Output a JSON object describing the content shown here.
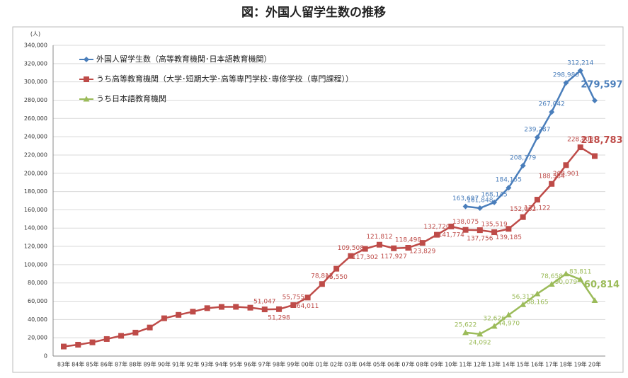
{
  "chart_data": {
    "type": "line",
    "title": "図：外国人留学生数の推移",
    "y_label": "(人)",
    "categories": [
      "83年",
      "84年",
      "85年",
      "86年",
      "87年",
      "88年",
      "89年",
      "90年",
      "91年",
      "92年",
      "93年",
      "94年",
      "95年",
      "96年",
      "97年",
      "98年",
      "99年",
      "00年",
      "01年",
      "02年",
      "03年",
      "04年",
      "05年",
      "06年",
      "07年",
      "08年",
      "09年",
      "10年",
      "11年",
      "12年",
      "13年",
      "14年",
      "15年",
      "16年",
      "17年",
      "18年",
      "19年",
      "20年"
    ],
    "series": [
      {
        "name": "外国人留学生数（高等教育機関･日本語教育機関）",
        "color": "#4a7ebb",
        "values": [
          null,
          null,
          null,
          null,
          null,
          null,
          null,
          null,
          null,
          null,
          null,
          null,
          null,
          null,
          null,
          null,
          null,
          null,
          null,
          null,
          null,
          null,
          null,
          null,
          null,
          null,
          null,
          null,
          163697,
          161848,
          168145,
          184155,
          208379,
          239287,
          267042,
          298980,
          312214,
          279597
        ],
        "value_labels": [
          null,
          null,
          null,
          null,
          null,
          null,
          null,
          null,
          null,
          null,
          null,
          null,
          null,
          null,
          null,
          null,
          null,
          null,
          null,
          null,
          null,
          null,
          null,
          null,
          null,
          null,
          null,
          null,
          "163,697",
          "161,848",
          "168,145",
          "184,155",
          "208,379",
          "239,287",
          "267,042",
          "298,980",
          "312,214",
          "279,597"
        ]
      },
      {
        "name": "うち高等教育機関（大学･短期大学･高等専門学校･専修学校（専門課程））",
        "color": "#be4b48",
        "values": [
          10428,
          12410,
          15009,
          18631,
          22154,
          25643,
          31251,
          41347,
          45066,
          48561,
          52405,
          53787,
          53847,
          52921,
          51047,
          51298,
          55755,
          64011,
          78812,
          95550,
          109508,
          117302,
          121812,
          117927,
          118498,
          123829,
          132720,
          141774,
          138075,
          137756,
          135519,
          139185,
          152062,
          171122,
          188384,
          208901,
          228403,
          218783
        ],
        "value_labels": [
          null,
          null,
          null,
          null,
          null,
          null,
          null,
          null,
          null,
          null,
          null,
          null,
          null,
          null,
          "51,047",
          "51,298",
          "55,755",
          "64,011",
          "78,812",
          "95,550",
          "109,508",
          "117,302",
          "121,812",
          "117,927",
          "118,498",
          "123,829",
          "132,720",
          "141,774",
          "138,075",
          "137,756",
          "135,519",
          "139,185",
          "152,062",
          "171,122",
          "188,384",
          "208,901",
          "228,403",
          "218,783"
        ]
      },
      {
        "name": "うち日本語教育機関",
        "color": "#9bbb59",
        "values": [
          null,
          null,
          null,
          null,
          null,
          null,
          null,
          null,
          null,
          null,
          null,
          null,
          null,
          null,
          null,
          null,
          null,
          null,
          null,
          null,
          null,
          null,
          null,
          null,
          null,
          null,
          null,
          null,
          25622,
          24092,
          32626,
          44970,
          56317,
          68165,
          78658,
          90079,
          83811,
          60814
        ],
        "value_labels": [
          null,
          null,
          null,
          null,
          null,
          null,
          null,
          null,
          null,
          null,
          null,
          null,
          null,
          null,
          null,
          null,
          null,
          null,
          null,
          null,
          null,
          null,
          null,
          null,
          null,
          null,
          null,
          null,
          "25,622",
          "24,092",
          "32,626",
          "44,970",
          "56,317",
          "68,165",
          "78,658",
          "90,079",
          "83,811",
          "60,814"
        ]
      }
    ],
    "ylim": [
      0,
      340000
    ],
    "yticks": [
      0,
      {
        "value": 20000,
        "label": "20,000"
      },
      {
        "value": 40000,
        "label": "40,000"
      },
      {
        "value": 60000,
        "label": "60,000"
      },
      {
        "value": 80000,
        "label": "80,000"
      },
      {
        "value": 100000,
        "label": "100,000"
      },
      {
        "value": 120000,
        "label": "120,000"
      },
      {
        "value": 140000,
        "label": "140,000"
      },
      {
        "value": 160000,
        "label": "160,000"
      },
      {
        "value": 180000,
        "label": "180,000"
      },
      {
        "value": 200000,
        "label": "200,000"
      },
      {
        "value": 220000,
        "label": "220,000"
      },
      {
        "value": 240000,
        "label": "240,000"
      },
      {
        "value": 260000,
        "label": "260,000"
      },
      {
        "value": 280000,
        "label": "280,000"
      },
      {
        "value": 300000,
        "label": "300,000"
      },
      {
        "value": 320000,
        "label": "320,000"
      },
      {
        "value": 340000,
        "label": "340,000"
      }
    ],
    "grid": true,
    "legend": "upper left"
  }
}
